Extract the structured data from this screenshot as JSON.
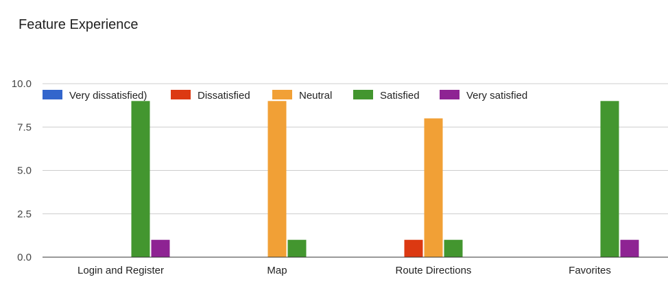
{
  "chart_data": {
    "type": "bar",
    "title": "Feature Experience",
    "categories": [
      "Login and Register",
      "Map",
      "Route Directions",
      "Favorites"
    ],
    "series": [
      {
        "name": "Very dissatisfied)",
        "color": "#3366cc",
        "values": [
          0,
          0,
          0,
          0
        ]
      },
      {
        "name": "Dissatisfied",
        "color": "#dc3912",
        "values": [
          0,
          0,
          1,
          0
        ]
      },
      {
        "name": "Neutral",
        "color": "#f1a036",
        "values": [
          0,
          9,
          8,
          0
        ]
      },
      {
        "name": "Satisfied",
        "color": "#43962f",
        "values": [
          9,
          1,
          1,
          9
        ]
      },
      {
        "name": "Very satisfied",
        "color": "#8e2393",
        "values": [
          1,
          0,
          0,
          1
        ]
      }
    ],
    "yticks": [
      "0.0",
      "2.5",
      "5.0",
      "7.5",
      "10.0"
    ],
    "ylim": [
      0,
      10
    ],
    "grid": true,
    "legend": "top"
  }
}
